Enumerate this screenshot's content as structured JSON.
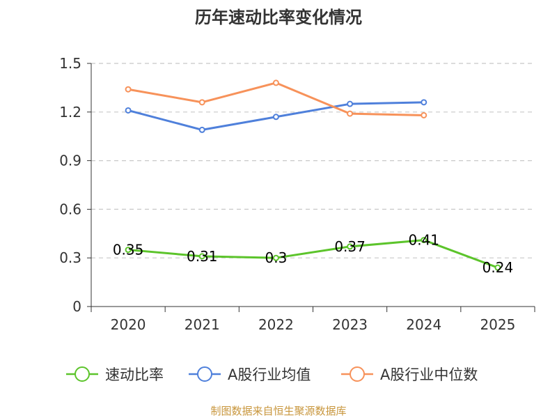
{
  "chart_data": {
    "type": "line",
    "title": "历年速动比率变化情况",
    "categories": [
      "2020",
      "2021",
      "2022",
      "2023",
      "2024",
      "2025"
    ],
    "ylim": [
      0,
      1.5
    ],
    "yticks": [
      0,
      0.3,
      0.6,
      0.9,
      1.2,
      1.5
    ],
    "ytick_labels": [
      "0",
      "0.3",
      "0.6",
      "0.9",
      "1.2",
      "1.5"
    ],
    "grid": true,
    "legend_position": "bottom",
    "series": [
      {
        "name": "速动比率",
        "color": "#5cc42b",
        "values": [
          0.35,
          0.31,
          0.3,
          0.37,
          0.41,
          0.24
        ],
        "labels": [
          "0.35",
          "0.31",
          "0.3",
          "0.37",
          "0.41",
          "0.24"
        ]
      },
      {
        "name": "A股行业均值",
        "color": "#4f80db",
        "values": [
          1.21,
          1.09,
          1.17,
          1.25,
          1.26,
          null
        ]
      },
      {
        "name": "A股行业中位数",
        "color": "#f7925a",
        "values": [
          1.34,
          1.26,
          1.38,
          1.19,
          1.18,
          null
        ]
      }
    ],
    "source": "制图数据来自恒生聚源数据库"
  }
}
